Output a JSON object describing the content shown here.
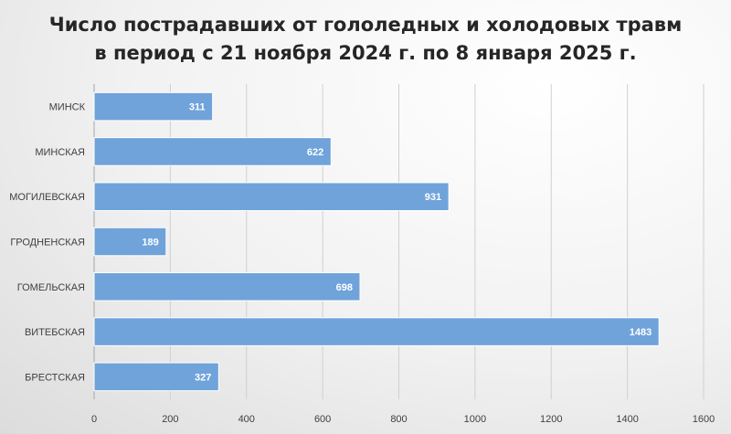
{
  "chart_data": {
    "type": "bar",
    "orientation": "horizontal",
    "title_lines": [
      "Число пострадавших от гололедных и холодовых травм",
      "в период с 21 ноября 2024 г. по 8 января 2025 г."
    ],
    "categories": [
      "МИНСК",
      "МИНСКАЯ",
      "МОГИЛЕВСКАЯ",
      "ГРОДНЕНСКАЯ",
      "ГОМЕЛЬСКАЯ",
      "ВИТЕБСКАЯ",
      "БРЕСТСКАЯ"
    ],
    "values": [
      311,
      622,
      931,
      189,
      698,
      1483,
      327
    ],
    "value_labels": [
      "311",
      "622",
      "931",
      "189",
      "698",
      "1483",
      "327"
    ],
    "x_ticks": [
      "0",
      "200",
      "400",
      "600",
      "800",
      "1000",
      "1200",
      "1400",
      "1600"
    ],
    "xlim": [
      0,
      1600
    ],
    "xlabel": "",
    "ylabel": "",
    "grid": "vertical",
    "legend": "none",
    "colors": {
      "bar": "#6fa3da",
      "bar_border": "#ffffff",
      "grid": "#d0d0d0",
      "axis": "#a6a6a6"
    }
  }
}
